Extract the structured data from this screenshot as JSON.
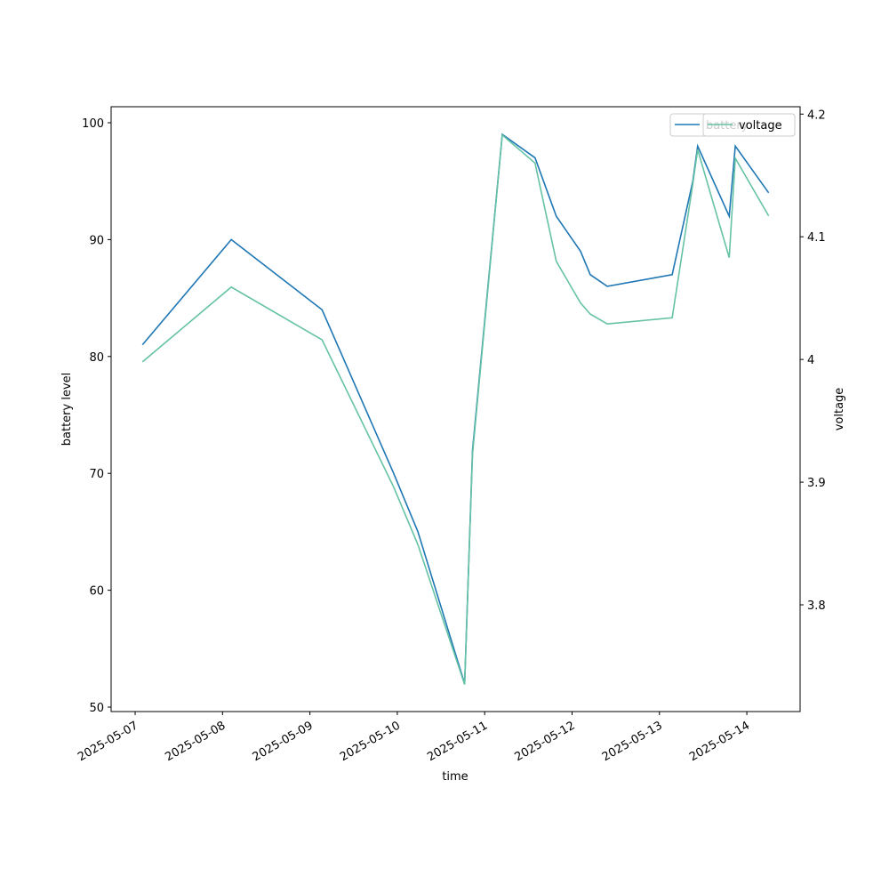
{
  "chart_data": {
    "type": "line",
    "x_label": "time",
    "y_label": "battery level",
    "y2_label": "voltage",
    "x": [
      "2025-05-07T02:00",
      "2025-05-08T02:24",
      "2025-05-09T03:20",
      "2025-05-09T23:00",
      "2025-05-10T05:40",
      "2025-05-10T18:30",
      "2025-05-10T20:40",
      "2025-05-11T04:50",
      "2025-05-11T13:50",
      "2025-05-11T19:40",
      "2025-05-12T02:20",
      "2025-05-12T05:00",
      "2025-05-12T09:40",
      "2025-05-13T03:30",
      "2025-05-13T09:10",
      "2025-05-13T10:30",
      "2025-05-13T19:10",
      "2025-05-13T20:50",
      "2025-05-14T06:00"
    ],
    "series": [
      {
        "name": "battery",
        "color": "#1f77b4",
        "axis": "y",
        "values": [
          81,
          90,
          84,
          70,
          65,
          52,
          72,
          99,
          97,
          92,
          89,
          87,
          86,
          87,
          95,
          98,
          92,
          98,
          94
        ]
      },
      {
        "name": "voltage",
        "color": "#66c2a5",
        "axis": "y2",
        "values": [
          3.998,
          4.059,
          4.016,
          3.896,
          3.849,
          3.735,
          3.923,
          4.183,
          4.16,
          4.08,
          4.046,
          4.037,
          4.029,
          4.034,
          4.143,
          4.171,
          4.083,
          4.164,
          4.117
        ]
      }
    ],
    "xlim": [
      "2025-05-06T17:24",
      "2025-05-14T14:38"
    ],
    "xticks": [
      "2025-05-07",
      "2025-05-08",
      "2025-05-09",
      "2025-05-10",
      "2025-05-11",
      "2025-05-12",
      "2025-05-13",
      "2025-05-14"
    ],
    "ylim": [
      49.62,
      101.37
    ],
    "yticks": [
      50,
      60,
      70,
      80,
      90,
      100
    ],
    "y2lim": [
      3.713,
      4.206
    ],
    "y2ticks": [
      3.8,
      3.9,
      4.0,
      4.1,
      4.2
    ],
    "legend": "upper right",
    "grid": false
  }
}
